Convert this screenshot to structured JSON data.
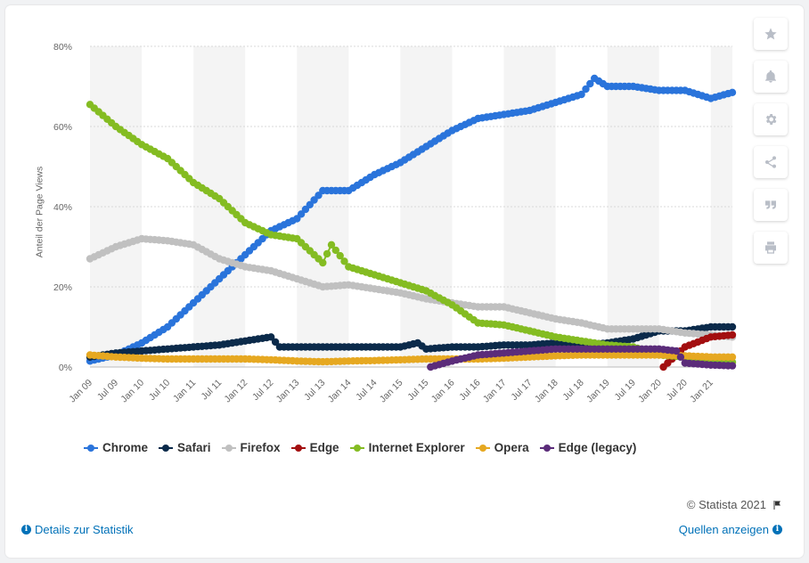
{
  "copyright": "© Statista 2021",
  "links": {
    "details": "Details zur Statistik",
    "sources": "Quellen anzeigen"
  },
  "tools": [
    "star-icon",
    "bell-icon",
    "gear-icon",
    "share-icon",
    "quote-icon",
    "print-icon"
  ],
  "chart_data": {
    "type": "line",
    "title": "",
    "xlabel": "",
    "ylabel": "Anteil der Page Views",
    "ylim": [
      0,
      80
    ],
    "yticks": [
      0,
      20,
      40,
      60,
      80
    ],
    "ytick_labels": [
      "0%",
      "20%",
      "40%",
      "60%",
      "80%"
    ],
    "grid": true,
    "legend_position": "bottom-left",
    "x_ticks": [
      "Jan 09",
      "Jul 09",
      "Jan 10",
      "Jul 10",
      "Jan 11",
      "Jul 11",
      "Jan 12",
      "Jul 12",
      "Jan 13",
      "Jul 13",
      "Jan 14",
      "Jul 14",
      "Jan 15",
      "Jul 15",
      "Jan 16",
      "Jul 16",
      "Jan 17",
      "Jul 17",
      "Jan 18",
      "Jul 18",
      "Jan 19",
      "Jul 19",
      "Jan 20",
      "Jul 20",
      "Jan 21"
    ],
    "x_start": "Jan 09",
    "x_end": "Jun 21",
    "series": [
      {
        "name": "Chrome",
        "color": "#2a74db",
        "start": "Jan 09",
        "points": [
          [
            "Jan 09",
            1.5
          ],
          [
            "Jul 09",
            3
          ],
          [
            "Jan 10",
            6
          ],
          [
            "Jul 10",
            10
          ],
          [
            "Jan 11",
            16
          ],
          [
            "Jul 11",
            22
          ],
          [
            "Jan 12",
            28
          ],
          [
            "Jul 12",
            34
          ],
          [
            "Jan 13",
            37
          ],
          [
            "Jul 13",
            44
          ],
          [
            "Jan 14",
            44
          ],
          [
            "Jul 14",
            48
          ],
          [
            "Jan 15",
            51
          ],
          [
            "Jul 15",
            55
          ],
          [
            "Jan 16",
            59
          ],
          [
            "Jul 16",
            62
          ],
          [
            "Jan 17",
            63
          ],
          [
            "Jul 17",
            64
          ],
          [
            "Jan 18",
            66
          ],
          [
            "Jul 18",
            68
          ],
          [
            "Oct 18",
            72
          ],
          [
            "Jan 19",
            70
          ],
          [
            "Jul 19",
            70
          ],
          [
            "Jan 20",
            69
          ],
          [
            "Jul 20",
            69
          ],
          [
            "Jan 21",
            67
          ],
          [
            "Jun 21",
            68.5
          ]
        ]
      },
      {
        "name": "Safari",
        "color": "#0b2a4a",
        "start": "Jan 09",
        "points": [
          [
            "Jan 09",
            2.5
          ],
          [
            "Jul 09",
            3.5
          ],
          [
            "Jan 10",
            4
          ],
          [
            "Jul 10",
            4.5
          ],
          [
            "Jan 11",
            5
          ],
          [
            "Jul 11",
            5.5
          ],
          [
            "Jan 12",
            6.5
          ],
          [
            "Jul 12",
            7.5
          ],
          [
            "Sep 12",
            5
          ],
          [
            "Jan 13",
            5
          ],
          [
            "Jul 13",
            5
          ],
          [
            "Jan 14",
            5
          ],
          [
            "Jul 14",
            5
          ],
          [
            "Jan 15",
            5
          ],
          [
            "May 15",
            6
          ],
          [
            "Jul 15",
            4.5
          ],
          [
            "Jan 16",
            5
          ],
          [
            "Jul 16",
            5
          ],
          [
            "Jan 17",
            5.5
          ],
          [
            "Jul 17",
            5.5
          ],
          [
            "Jan 18",
            6
          ],
          [
            "Jul 18",
            5.5
          ],
          [
            "Jan 19",
            6
          ],
          [
            "Jul 19",
            7
          ],
          [
            "Jan 20",
            9
          ],
          [
            "Jul 20",
            9
          ],
          [
            "Jan 21",
            10
          ],
          [
            "Jun 21",
            10
          ]
        ]
      },
      {
        "name": "Firefox",
        "color": "#c0c0c0",
        "start": "Jan 09",
        "points": [
          [
            "Jan 09",
            27
          ],
          [
            "Jul 09",
            30
          ],
          [
            "Jan 10",
            32
          ],
          [
            "Jul 10",
            31.5
          ],
          [
            "Jan 11",
            30.5
          ],
          [
            "Jul 11",
            27
          ],
          [
            "Jan 12",
            25
          ],
          [
            "Jul 12",
            24
          ],
          [
            "Jan 13",
            22
          ],
          [
            "Jul 13",
            20
          ],
          [
            "Jan 14",
            20.5
          ],
          [
            "Jul 14",
            19.5
          ],
          [
            "Jan 15",
            18.5
          ],
          [
            "Jul 15",
            17
          ],
          [
            "Jan 16",
            16
          ],
          [
            "Jul 16",
            15
          ],
          [
            "Jan 17",
            15
          ],
          [
            "Jul 17",
            13.5
          ],
          [
            "Jan 18",
            12
          ],
          [
            "Jul 18",
            11
          ],
          [
            "Jan 19",
            9.5
          ],
          [
            "Jul 19",
            9.5
          ],
          [
            "Jan 20",
            9.5
          ],
          [
            "Jul 20",
            8.5
          ],
          [
            "Jan 21",
            8
          ],
          [
            "Jun 21",
            7.5
          ]
        ]
      },
      {
        "name": "Edge",
        "color": "#a30f10",
        "start": "Feb 20",
        "points": [
          [
            "Feb 20",
            0
          ],
          [
            "Jul 20",
            5
          ],
          [
            "Jan 21",
            7.5
          ],
          [
            "Jun 21",
            8
          ]
        ]
      },
      {
        "name": "Internet Explorer",
        "color": "#84bc22",
        "start": "Jan 09",
        "points": [
          [
            "Jan 09",
            65.5
          ],
          [
            "Jul 09",
            60
          ],
          [
            "Jan 10",
            55.5
          ],
          [
            "Jul 10",
            52
          ],
          [
            "Jan 11",
            46
          ],
          [
            "Jul 11",
            42
          ],
          [
            "Jan 12",
            36
          ],
          [
            "Jul 12",
            33
          ],
          [
            "Jan 13",
            32
          ],
          [
            "Jul 13",
            26
          ],
          [
            "Sep 13",
            30.5
          ],
          [
            "Jan 14",
            25
          ],
          [
            "Jul 14",
            23
          ],
          [
            "Jan 15",
            21
          ],
          [
            "Jul 15",
            19
          ],
          [
            "Jan 16",
            15.5
          ],
          [
            "Jul 16",
            11
          ],
          [
            "Jan 17",
            10.5
          ],
          [
            "Jul 17",
            9
          ],
          [
            "Jan 18",
            7.5
          ],
          [
            "Jul 18",
            6.5
          ],
          [
            "Jan 19",
            5.5
          ],
          [
            "Jul 19",
            5
          ],
          [
            "Jan 20",
            3
          ],
          [
            "Jul 20",
            2.5
          ],
          [
            "Jan 21",
            1.5
          ],
          [
            "Jun 21",
            1.2
          ]
        ]
      },
      {
        "name": "Opera",
        "color": "#e6a821",
        "start": "Jan 09",
        "points": [
          [
            "Jan 09",
            3
          ],
          [
            "Jul 09",
            2.5
          ],
          [
            "Jan 10",
            2.2
          ],
          [
            "Jul 10",
            2
          ],
          [
            "Jan 11",
            2
          ],
          [
            "Jul 11",
            2
          ],
          [
            "Jan 12",
            2
          ],
          [
            "Jul 12",
            1.8
          ],
          [
            "Jan 13",
            1.5
          ],
          [
            "Jul 13",
            1.3
          ],
          [
            "Jan 14",
            1.5
          ],
          [
            "Jul 14",
            1.6
          ],
          [
            "Jan 15",
            1.8
          ],
          [
            "Jul 15",
            2
          ],
          [
            "Jan 16",
            2
          ],
          [
            "Jul 16",
            2
          ],
          [
            "Jan 17",
            2.2
          ],
          [
            "Jul 17",
            2.5
          ],
          [
            "Jan 18",
            2.8
          ],
          [
            "Jul 18",
            3
          ],
          [
            "Jan 19",
            3
          ],
          [
            "Jul 19",
            3
          ],
          [
            "Jan 20",
            3
          ],
          [
            "Jul 20",
            2.8
          ],
          [
            "Jan 21",
            2.5
          ],
          [
            "Jun 21",
            2.5
          ]
        ]
      },
      {
        "name": "Edge (legacy)",
        "color": "#5b2c7a",
        "start": "Aug 15",
        "points": [
          [
            "Aug 15",
            0
          ],
          [
            "Jan 16",
            1.5
          ],
          [
            "Jul 16",
            3
          ],
          [
            "Jan 17",
            3.5
          ],
          [
            "Jul 17",
            4
          ],
          [
            "Jan 18",
            4.5
          ],
          [
            "Jul 18",
            4.5
          ],
          [
            "Jan 19",
            4.5
          ],
          [
            "Jul 19",
            4.5
          ],
          [
            "Jan 20",
            4.5
          ],
          [
            "May 20",
            4
          ],
          [
            "Jul 20",
            1
          ],
          [
            "Jan 21",
            0.5
          ],
          [
            "Jun 21",
            0.3
          ]
        ]
      }
    ]
  }
}
